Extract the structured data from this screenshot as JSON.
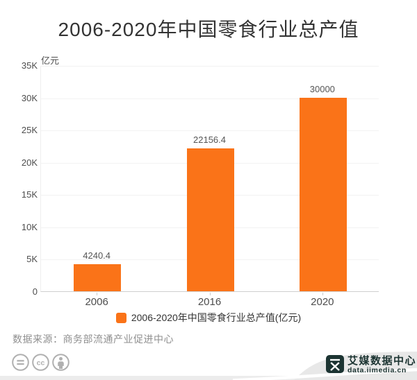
{
  "title": "2006-2020年中国零食行业总产值",
  "chart_data": {
    "type": "bar",
    "title": "2006-2020年中国零食行业总产值",
    "unit_label": "亿元",
    "categories": [
      "2006",
      "2016",
      "2020"
    ],
    "values": [
      4240.4,
      22156.4,
      30000
    ],
    "value_labels": [
      "4240.4",
      "22156.4",
      "30000"
    ],
    "xlabel": "",
    "ylabel": "亿元",
    "ylim": [
      0,
      35000
    ],
    "ytick_step": 5000,
    "ytick_labels": [
      "0",
      "5K",
      "10K",
      "15K",
      "20K",
      "25K",
      "30K",
      "35K"
    ],
    "grid": true,
    "legend_position": "bottom",
    "bar_color": "#FA7318"
  },
  "legend": {
    "label": "2006-2020年中国零食行业总产值(亿元)",
    "swatch_color": "#FA7318"
  },
  "source": "数据来源：商务部流通产业促进中心",
  "license_icons": [
    "no-derivatives-equals",
    "creative-commons",
    "attribution-person"
  ],
  "branding": {
    "logo_glyph": "艾",
    "name": "艾媒数据中心",
    "domain": "data.iimedia.cn"
  },
  "colors": {
    "bar": "#FA7318",
    "title_text": "#333333",
    "axis_text": "#4d4d4d",
    "value_text": "#555555",
    "source_text": "#8f8f8f",
    "license_gray": "#b0b0b0",
    "brand_dark": "#1c3432",
    "ribbon_gray": "#e8e8e8",
    "strip_gray": "#ececec"
  }
}
